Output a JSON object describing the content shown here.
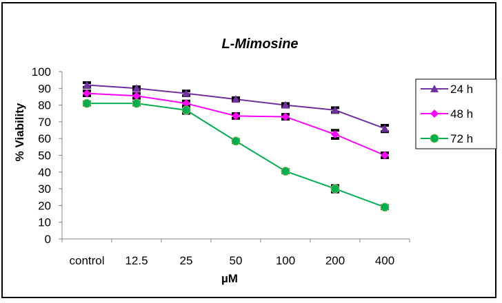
{
  "chart_data": {
    "type": "line",
    "title": "L-Mimosine",
    "xlabel": "µM",
    "ylabel": "% Viability",
    "categories": [
      "control",
      "12.5",
      "25",
      "50",
      "100",
      "200",
      "400"
    ],
    "ylim": [
      0,
      100
    ],
    "yticks": [
      0,
      10,
      20,
      30,
      40,
      50,
      60,
      70,
      80,
      90,
      100
    ],
    "yticks_labels": [
      "0",
      "10",
      "20",
      "30",
      "40",
      "50",
      "60",
      "70",
      "80",
      "90",
      "100"
    ],
    "grid": false,
    "legend_position": "right",
    "series": [
      {
        "name": "24 h",
        "color": "#7030A0",
        "marker": "triangle",
        "values": [
          92,
          90,
          87,
          83.5,
          80,
          77,
          66
        ],
        "errors": [
          1,
          0.5,
          1,
          0.5,
          0.5,
          1,
          1.5
        ]
      },
      {
        "name": "48 h",
        "color": "#FF00FF",
        "marker": "diamond",
        "values": [
          87,
          85.5,
          81,
          73.5,
          73,
          62.5,
          50
        ],
        "errors": [
          1,
          1,
          1,
          1,
          1,
          2,
          1
        ]
      },
      {
        "name": "72 h",
        "color": "#00B050",
        "marker": "circle",
        "values": [
          81,
          81,
          77,
          58.5,
          40.5,
          30,
          19
        ],
        "errors": [
          0.5,
          0.5,
          1.5,
          0.5,
          0.5,
          1.5,
          0.5
        ]
      }
    ]
  }
}
